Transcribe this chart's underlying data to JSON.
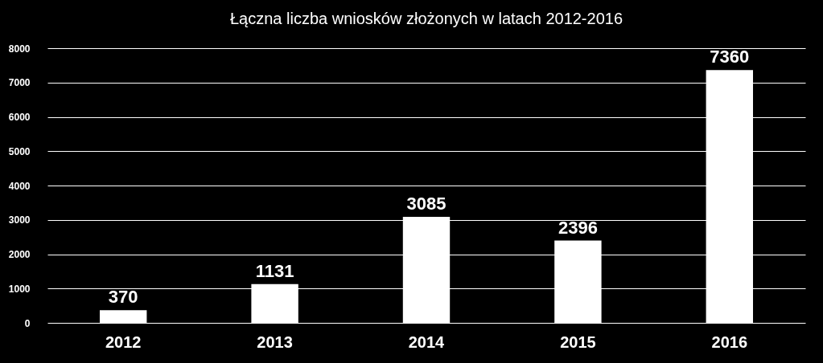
{
  "chart_data": {
    "type": "bar",
    "title": "Łączna liczba wniosków złożonych w latach 2012-2016",
    "categories": [
      "2012",
      "2013",
      "2014",
      "2015",
      "2016"
    ],
    "values": [
      370,
      1131,
      3085,
      2396,
      7360
    ],
    "color": "#ffffff",
    "ylim": [
      0,
      8000
    ],
    "yticks": [
      0,
      1000,
      2000,
      3000,
      4000,
      5000,
      6000,
      7000,
      8000
    ],
    "grid": "y",
    "data_labels": true
  }
}
